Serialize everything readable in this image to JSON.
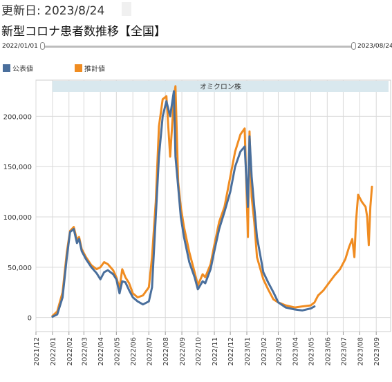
{
  "header": {
    "updated_label": "更新日: 2023/8/24",
    "title": "新型コロナ患者数推移【全国】"
  },
  "slider": {
    "start_label": "2022/01/01",
    "end_label": "2023/08/24"
  },
  "colors": {
    "official": "#4a6f9c",
    "estimated": "#f08c21",
    "band": "#d9e8ee",
    "grid": "#d9d9d9"
  },
  "chart_data": {
    "type": "line",
    "x_type": "date",
    "xlim": [
      "2021-12-01",
      "2023-09-28"
    ],
    "ylim": [
      -14000,
      236000
    ],
    "y_ticks": [
      0,
      50000,
      100000,
      150000,
      200000
    ],
    "y_tick_labels": [
      "0",
      "50,000",
      "100,000",
      "150,000",
      "200,000"
    ],
    "x_tick_dates": [
      "2021-12-01",
      "2022-01-01",
      "2022-02-01",
      "2022-03-01",
      "2022-04-01",
      "2022-05-01",
      "2022-06-01",
      "2022-07-01",
      "2022-08-01",
      "2022-09-01",
      "2022-10-01",
      "2022-11-01",
      "2022-12-01",
      "2023-01-01",
      "2023-02-01",
      "2023-03-01",
      "2023-04-01",
      "2023-05-01",
      "2023-06-01",
      "2023-07-01",
      "2023-08-01",
      "2023-09-01"
    ],
    "x_tick_labels": [
      "2021/12",
      "2022/01",
      "2022/02",
      "2022/03",
      "2022/04",
      "2022/05",
      "2022/06",
      "2022/07",
      "2022/08",
      "2022/09",
      "2022/10",
      "2022/11",
      "2022/12",
      "2023/01",
      "2023/02",
      "2023/03",
      "2023/04",
      "2023/05",
      "2023/06",
      "2023/07",
      "2023/08",
      "2023/09"
    ],
    "band": {
      "label": "オミクロン株",
      "from": "2022-01-01",
      "to": "2023-09-28"
    },
    "grid": true,
    "legend_position": "top-left",
    "series": [
      {
        "name": "公表値",
        "x": [
          "2022-01-01",
          "2022-01-10",
          "2022-01-20",
          "2022-01-28",
          "2022-02-03",
          "2022-02-10",
          "2022-02-16",
          "2022-02-20",
          "2022-02-25",
          "2022-03-05",
          "2022-03-15",
          "2022-03-25",
          "2022-04-01",
          "2022-04-08",
          "2022-04-15",
          "2022-04-25",
          "2022-05-01",
          "2022-05-07",
          "2022-05-12",
          "2022-05-18",
          "2022-05-25",
          "2022-06-01",
          "2022-06-10",
          "2022-06-20",
          "2022-07-01",
          "2022-07-07",
          "2022-07-14",
          "2022-07-20",
          "2022-07-27",
          "2022-08-03",
          "2022-08-10",
          "2022-08-17",
          "2022-08-20",
          "2022-08-25",
          "2022-08-30",
          "2022-09-05",
          "2022-09-15",
          "2022-09-25",
          "2022-10-01",
          "2022-10-10",
          "2022-10-15",
          "2022-10-25",
          "2022-11-01",
          "2022-11-10",
          "2022-11-20",
          "2022-12-01",
          "2022-12-10",
          "2022-12-20",
          "2022-12-28",
          "2023-01-03",
          "2023-01-06",
          "2023-01-10",
          "2023-01-15",
          "2023-01-20",
          "2023-02-01",
          "2023-02-10",
          "2023-02-20",
          "2023-03-01",
          "2023-03-15",
          "2023-04-01",
          "2023-04-15",
          "2023-05-01",
          "2023-05-08"
        ],
        "values": [
          800,
          3000,
          20000,
          60000,
          85000,
          88000,
          74000,
          78000,
          66000,
          58000,
          50000,
          44000,
          38000,
          45000,
          47000,
          43000,
          38000,
          24000,
          36000,
          35000,
          27000,
          20000,
          16000,
          13000,
          16000,
          30000,
          100000,
          160000,
          200000,
          215000,
          200000,
          225000,
          160000,
          130000,
          100000,
          80000,
          55000,
          40000,
          28000,
          36000,
          34000,
          48000,
          66000,
          88000,
          105000,
          125000,
          150000,
          165000,
          170000,
          110000,
          180000,
          140000,
          110000,
          80000,
          45000,
          35000,
          25000,
          15000,
          10000,
          8000,
          7000,
          9000,
          11000
        ]
      },
      {
        "name": "推計値",
        "x": [
          "2022-01-01",
          "2022-01-10",
          "2022-01-20",
          "2022-01-28",
          "2022-02-03",
          "2022-02-10",
          "2022-02-16",
          "2022-02-20",
          "2022-02-25",
          "2022-03-05",
          "2022-03-15",
          "2022-03-25",
          "2022-04-01",
          "2022-04-08",
          "2022-04-15",
          "2022-04-25",
          "2022-05-01",
          "2022-05-07",
          "2022-05-12",
          "2022-05-18",
          "2022-05-25",
          "2022-06-01",
          "2022-06-10",
          "2022-06-20",
          "2022-07-01",
          "2022-07-07",
          "2022-07-14",
          "2022-07-20",
          "2022-07-27",
          "2022-08-03",
          "2022-08-10",
          "2022-08-17",
          "2022-08-20",
          "2022-08-25",
          "2022-08-30",
          "2022-09-05",
          "2022-09-15",
          "2022-09-25",
          "2022-10-01",
          "2022-10-10",
          "2022-10-15",
          "2022-10-25",
          "2022-11-01",
          "2022-11-10",
          "2022-11-20",
          "2022-12-01",
          "2022-12-10",
          "2022-12-20",
          "2022-12-28",
          "2023-01-03",
          "2023-01-06",
          "2023-01-10",
          "2023-01-15",
          "2023-01-20",
          "2023-02-01",
          "2023-02-10",
          "2023-02-20",
          "2023-03-01",
          "2023-03-15",
          "2023-04-01",
          "2023-04-15",
          "2023-05-01",
          "2023-05-08",
          "2023-05-15",
          "2023-05-25",
          "2023-06-05",
          "2023-06-15",
          "2023-06-25",
          "2023-07-05",
          "2023-07-12",
          "2023-07-18",
          "2023-07-22",
          "2023-07-25",
          "2023-07-29",
          "2023-08-05",
          "2023-08-12",
          "2023-08-15",
          "2023-08-18",
          "2023-08-21",
          "2023-08-24"
        ],
        "values": [
          1500,
          6000,
          25000,
          65000,
          86000,
          90000,
          77000,
          80000,
          68000,
          60000,
          52000,
          48000,
          50000,
          55000,
          53000,
          47000,
          40000,
          29000,
          48000,
          40000,
          34000,
          24000,
          20000,
          22000,
          30000,
          60000,
          115000,
          190000,
          217000,
          220000,
          160000,
          218000,
          230000,
          135000,
          110000,
          90000,
          65000,
          45000,
          32000,
          43000,
          40000,
          53000,
          72000,
          95000,
          110000,
          140000,
          165000,
          182000,
          188000,
          80000,
          185000,
          120000,
          95000,
          60000,
          38000,
          28000,
          18000,
          15000,
          12000,
          10000,
          11000,
          12000,
          15000,
          22000,
          27000,
          35000,
          42000,
          48000,
          58000,
          70000,
          78000,
          60000,
          95000,
          122000,
          115000,
          110000,
          100000,
          72000,
          110000,
          130000
        ]
      }
    ]
  }
}
